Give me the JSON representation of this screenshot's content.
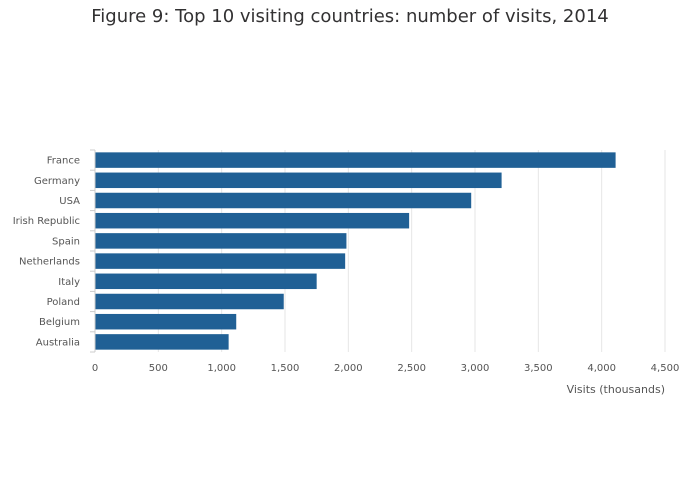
{
  "chart_data": {
    "type": "bar",
    "orientation": "horizontal",
    "title": "Figure 9: Top 10 visiting countries: number of visits, 2014",
    "xlabel": "Visits (thousands)",
    "ylabel": "",
    "categories": [
      "France",
      "Germany",
      "USA",
      "Irish Republic",
      "Spain",
      "Netherlands",
      "Italy",
      "Poland",
      "Belgium",
      "Australia"
    ],
    "values": [
      4110,
      3210,
      2970,
      2480,
      1985,
      1975,
      1750,
      1490,
      1115,
      1055
    ],
    "xlim": [
      0,
      4500
    ],
    "xticks": [
      0,
      500,
      1000,
      1500,
      2000,
      2500,
      3000,
      3500,
      4000,
      4500
    ],
    "xtick_labels": [
      "0",
      "500",
      "1,000",
      "1,500",
      "2,000",
      "2,500",
      "3,000",
      "3,500",
      "4,000",
      "4,500"
    ],
    "grid": "vertical",
    "bar_color": "#206095",
    "grid_color": "#e6e6e6"
  }
}
